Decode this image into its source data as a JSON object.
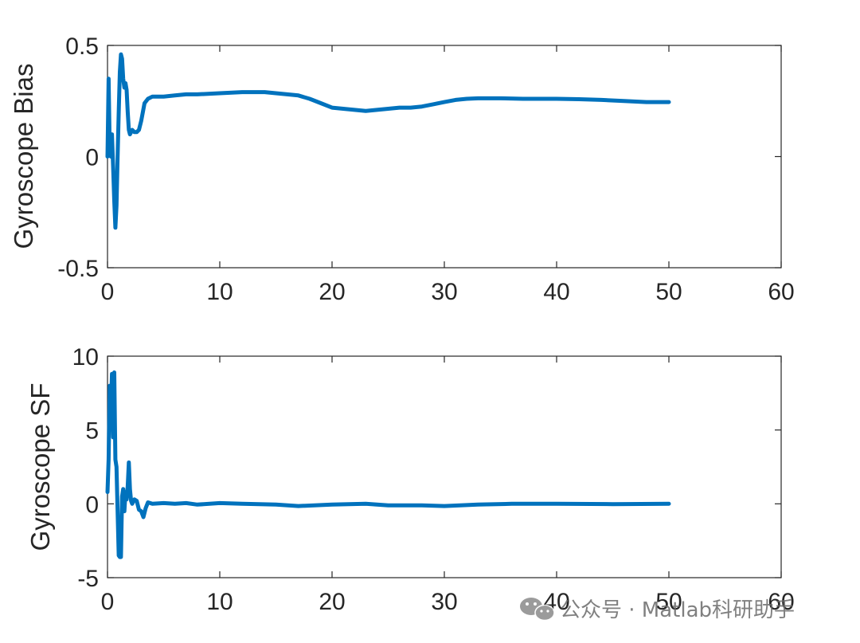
{
  "chart_data": [
    {
      "type": "line",
      "ylabel": "Gyroscope Bias",
      "xlim": [
        0,
        60
      ],
      "ylim": [
        -0.5,
        0.5
      ],
      "xticks": [
        0,
        10,
        20,
        30,
        40,
        50,
        60
      ],
      "yticks": [
        -0.5,
        0,
        0.5
      ],
      "xtick_labels": [
        "0",
        "10",
        "20",
        "30",
        "40",
        "50",
        "60"
      ],
      "ytick_labels": [
        "-0.5",
        "0",
        "0.5"
      ],
      "grid": false,
      "color": "#0072BD",
      "series": [
        {
          "x": [
            0,
            0.1,
            0.2,
            0.3,
            0.4,
            0.5,
            0.6,
            0.7,
            0.8,
            0.9,
            1.0,
            1.1,
            1.2,
            1.3,
            1.4,
            1.5,
            1.6,
            1.7,
            1.8,
            1.9,
            2.0,
            2.2,
            2.4,
            2.6,
            2.8,
            3.0,
            3.3,
            3.6,
            4.0,
            5,
            6,
            7,
            8,
            10,
            12,
            14,
            15,
            16,
            17,
            18,
            19,
            20,
            21,
            22,
            23,
            24,
            25,
            26,
            27,
            28,
            29,
            30,
            31,
            32,
            33,
            35,
            37,
            40,
            42,
            44,
            46,
            48,
            50
          ],
          "y": [
            0.0,
            0.35,
            0.03,
            0.0,
            0.1,
            -0.05,
            -0.2,
            -0.32,
            -0.22,
            0.0,
            0.2,
            0.38,
            0.46,
            0.44,
            0.35,
            0.31,
            0.33,
            0.3,
            0.2,
            0.12,
            0.1,
            0.12,
            0.11,
            0.11,
            0.12,
            0.16,
            0.24,
            0.26,
            0.27,
            0.27,
            0.275,
            0.28,
            0.28,
            0.285,
            0.29,
            0.29,
            0.285,
            0.28,
            0.275,
            0.26,
            0.24,
            0.22,
            0.215,
            0.21,
            0.205,
            0.21,
            0.215,
            0.22,
            0.22,
            0.225,
            0.235,
            0.245,
            0.255,
            0.26,
            0.262,
            0.262,
            0.26,
            0.26,
            0.258,
            0.255,
            0.25,
            0.245,
            0.245
          ]
        }
      ]
    },
    {
      "type": "line",
      "ylabel": "Gyroscope SF",
      "xlim": [
        0,
        60
      ],
      "ylim": [
        -5,
        10
      ],
      "xticks": [
        0,
        10,
        20,
        30,
        40,
        50,
        60
      ],
      "yticks": [
        -5,
        0,
        5,
        10
      ],
      "xtick_labels": [
        "0",
        "10",
        "20",
        "30",
        "40",
        "50",
        "60"
      ],
      "ytick_labels": [
        "-5",
        "0",
        "5",
        "10"
      ],
      "grid": false,
      "color": "#0072BD",
      "series": [
        {
          "x": [
            0,
            0.1,
            0.2,
            0.3,
            0.4,
            0.5,
            0.6,
            0.7,
            0.8,
            0.9,
            1.0,
            1.1,
            1.2,
            1.3,
            1.4,
            1.5,
            1.6,
            1.7,
            1.8,
            1.9,
            2.0,
            2.1,
            2.2,
            2.4,
            2.6,
            2.8,
            3.0,
            3.2,
            3.4,
            3.6,
            4.0,
            5,
            6,
            7,
            8,
            10,
            12,
            15,
            17,
            20,
            23,
            25,
            28,
            30,
            33,
            36,
            40,
            45,
            50
          ],
          "y": [
            0.8,
            3.0,
            8.0,
            6.0,
            8.8,
            4.5,
            8.9,
            3.0,
            2.5,
            -0.5,
            -3.5,
            -3.6,
            -3.6,
            0.5,
            1.0,
            -0.5,
            0.8,
            0.3,
            1.2,
            2.8,
            1.0,
            0.2,
            0.0,
            0.3,
            0.2,
            -0.4,
            -0.5,
            -0.9,
            -0.3,
            0.1,
            0.0,
            0.05,
            0.0,
            0.05,
            -0.05,
            0.05,
            0.0,
            -0.05,
            -0.15,
            -0.05,
            0.0,
            -0.1,
            -0.1,
            -0.15,
            -0.05,
            0.0,
            0.0,
            -0.02,
            0.0
          ]
        }
      ]
    }
  ],
  "watermark": {
    "text": "公众号 · Matlab科研助手",
    "icon": "wechat-icon"
  }
}
